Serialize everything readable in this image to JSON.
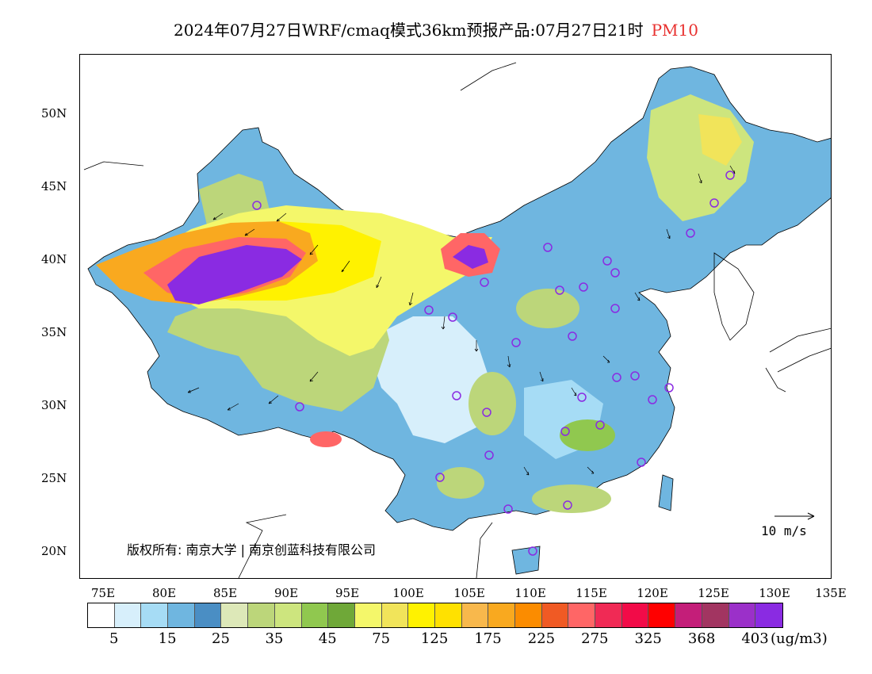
{
  "title": {
    "main": "2024年07月27日WRF/cmaq模式36km预报产品:07月27日21时",
    "pollutant": "PM10",
    "pollutant_color": "#e8312f"
  },
  "map": {
    "lat_labels": [
      "50N",
      "45N",
      "40N",
      "35N",
      "30N",
      "25N",
      "20N"
    ],
    "lon_labels": [
      "75E",
      "80E",
      "85E",
      "90E",
      "95E",
      "100E",
      "105E",
      "110E",
      "115E",
      "120E",
      "125E",
      "130E",
      "135E"
    ],
    "copyright": "版权所有: 南京大学 | 南京创蓝科技有限公司",
    "wind_reference": "10 m/s"
  },
  "legend": {
    "colors": [
      "#ffffff",
      "#d7effb",
      "#a6dcf5",
      "#6fb6e0",
      "#4a8ec4",
      "#dde8b8",
      "#bcd67a",
      "#cde57e",
      "#90c84f",
      "#6fa838",
      "#f4f76a",
      "#f1e45a",
      "#fff200",
      "#ffe100",
      "#f8b84c",
      "#f9a91f",
      "#fb8c00",
      "#f05a24",
      "#ff6666",
      "#f02a55",
      "#f20b48",
      "#ff0000",
      "#c41e79",
      "#a23561",
      "#9b30c9",
      "#8a2be2"
    ],
    "labels": [
      "5",
      "15",
      "25",
      "35",
      "45",
      "75",
      "125",
      "175",
      "225",
      "275",
      "325",
      "368",
      "403"
    ],
    "unit": "(ug/m3)"
  }
}
